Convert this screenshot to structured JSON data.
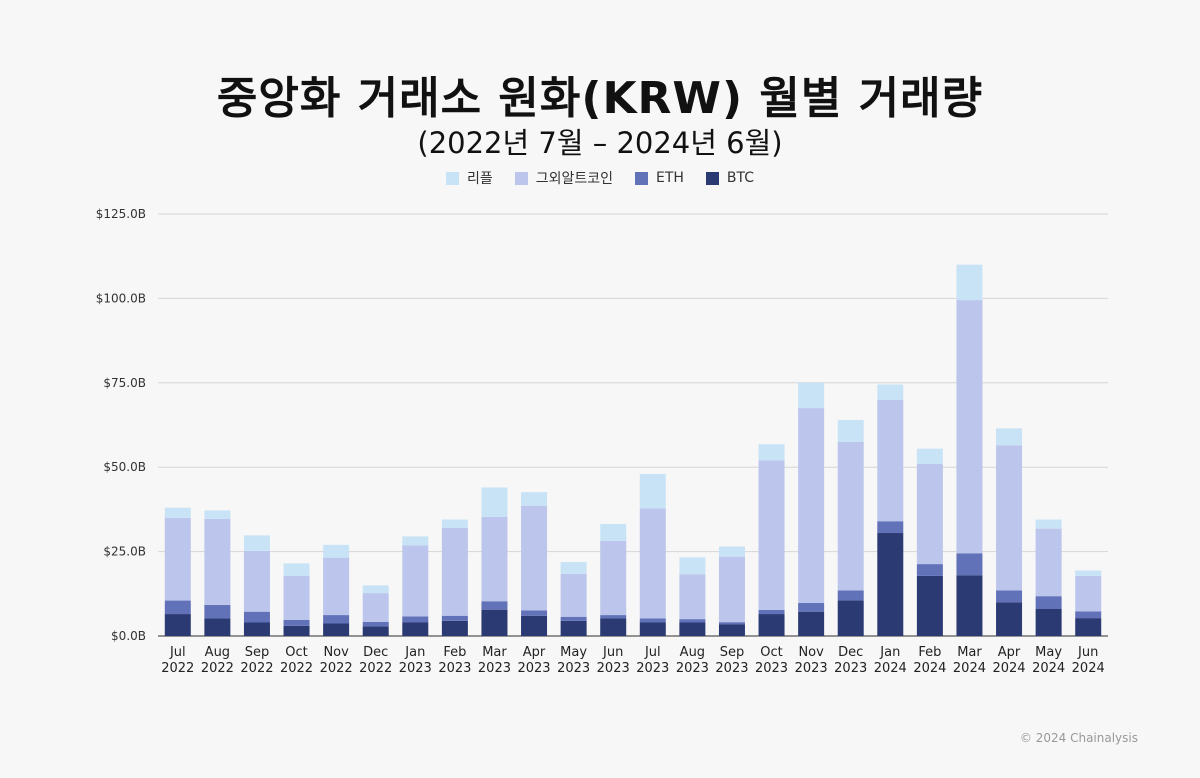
{
  "chart_data": {
    "type": "bar",
    "stacked": true,
    "title": "중앙화 거래소 원화(KRW) 월별 거래량",
    "subtitle": "(2022년 7월 – 2024년 6월)",
    "categories": [
      [
        "Jul",
        "2022"
      ],
      [
        "Aug",
        "2022"
      ],
      [
        "Sep",
        "2022"
      ],
      [
        "Oct",
        "2022"
      ],
      [
        "Nov",
        "2022"
      ],
      [
        "Dec",
        "2022"
      ],
      [
        "Jan",
        "2023"
      ],
      [
        "Feb",
        "2023"
      ],
      [
        "Mar",
        "2023"
      ],
      [
        "Apr",
        "2023"
      ],
      [
        "May",
        "2023"
      ],
      [
        "Jun",
        "2023"
      ],
      [
        "Jul",
        "2023"
      ],
      [
        "Aug",
        "2023"
      ],
      [
        "Sep",
        "2023"
      ],
      [
        "Oct",
        "2023"
      ],
      [
        "Nov",
        "2023"
      ],
      [
        "Dec",
        "2023"
      ],
      [
        "Jan",
        "2024"
      ],
      [
        "Feb",
        "2024"
      ],
      [
        "Mar",
        "2024"
      ],
      [
        "Apr",
        "2024"
      ],
      [
        "May",
        "2024"
      ],
      [
        "Jun",
        "2024"
      ]
    ],
    "series": [
      {
        "name": "BTC",
        "color": "#2b3a73",
        "values": [
          6.5,
          5.2,
          4.0,
          3.0,
          3.7,
          2.8,
          4.0,
          4.5,
          7.8,
          6.0,
          4.5,
          5.2,
          4.0,
          4.0,
          3.5,
          6.5,
          7.2,
          10.5,
          30.5,
          17.8,
          18.0,
          10.0,
          8.0,
          5.3
        ]
      },
      {
        "name": "ETH",
        "color": "#6272b8",
        "values": [
          4.0,
          4.0,
          3.2,
          1.8,
          2.5,
          1.4,
          1.8,
          1.5,
          2.5,
          1.6,
          1.2,
          1.0,
          1.2,
          1.0,
          0.6,
          1.2,
          2.6,
          3.0,
          3.5,
          3.5,
          6.5,
          3.5,
          3.8,
          2.0
        ]
      },
      {
        "name": "그외알트코인",
        "color": "#bcc5ec",
        "values": [
          24.5,
          25.5,
          18.0,
          13.0,
          17.0,
          8.5,
          21.0,
          26.0,
          25.0,
          31.0,
          12.7,
          22.0,
          32.6,
          13.3,
          19.4,
          44.3,
          57.7,
          44.0,
          36.0,
          29.7,
          75.0,
          43.0,
          20.0,
          10.5
        ]
      },
      {
        "name": "리플",
        "color": "#c8e3f6",
        "values": [
          3.0,
          2.5,
          4.6,
          3.7,
          3.8,
          2.3,
          2.7,
          2.5,
          8.7,
          4.0,
          3.5,
          5.0,
          10.2,
          5.0,
          3.0,
          4.8,
          7.5,
          6.5,
          4.5,
          4.5,
          10.5,
          5.0,
          2.7,
          1.6
        ]
      }
    ],
    "legend_order": [
      "리플",
      "그외알트코인",
      "ETH",
      "BTC"
    ],
    "ylim": [
      0,
      125
    ],
    "yticks": [
      0,
      25,
      50,
      75,
      100,
      125
    ],
    "ytick_labels": [
      "$0.0B",
      "$25.0B",
      "$50.0B",
      "$75.0B",
      "$100.0B",
      "$125.0B"
    ],
    "grid": true,
    "legend_position": "top-center"
  },
  "footer": "© 2024 Chainalysis"
}
